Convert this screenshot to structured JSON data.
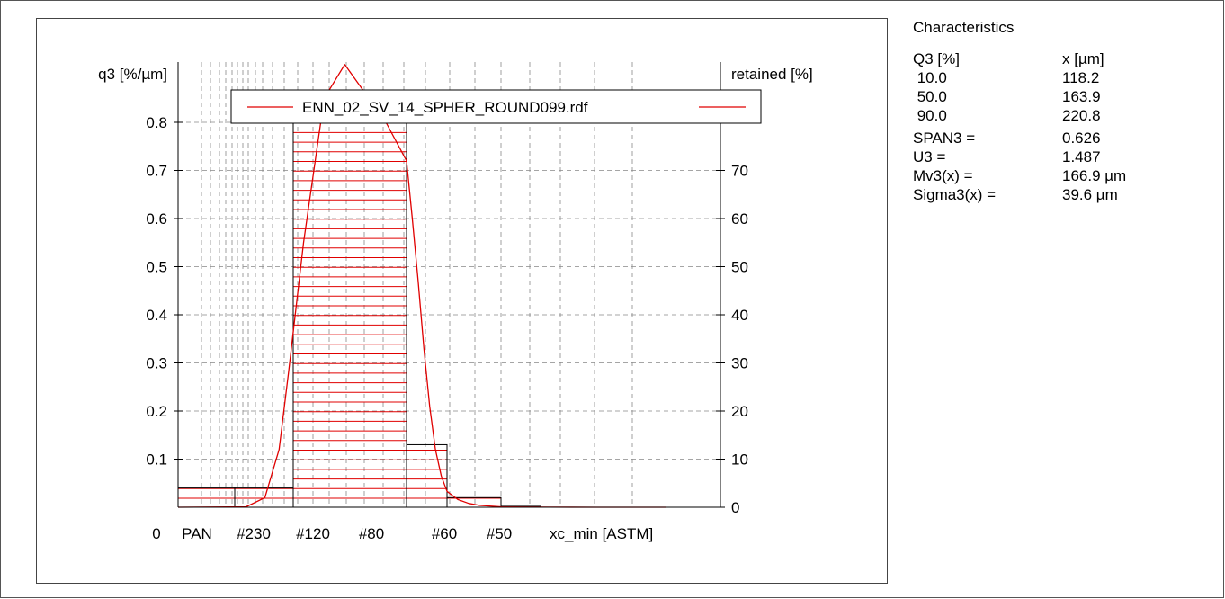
{
  "chart_data": {
    "type": "bar",
    "left_axis_label": "q3 [%/µm]",
    "right_axis_label": "retained [%]",
    "xlabel": "xc_min [ASTM]",
    "legend_entry": "ENN_02_SV_14_SPHER_ROUND099.rdf",
    "legend_position": "top",
    "grid": true,
    "y_left_ticks": [
      "0.1",
      "0.2",
      "0.3",
      "0.4",
      "0.5",
      "0.6",
      "0.7",
      "0.8"
    ],
    "y_right_ticks": [
      "0",
      "10",
      "20",
      "30",
      "40",
      "50",
      "60",
      "70"
    ],
    "x_tick_labels": [
      "0",
      "PAN",
      "#230",
      "#120",
      "#80",
      "#60",
      "#50"
    ],
    "ylim_left": [
      0,
      0.85
    ],
    "ylim_right": [
      0,
      85
    ],
    "x_range_um": [
      0,
      500
    ],
    "categories": [
      "PAN–#230",
      "#230–#120",
      "#120–#80",
      "#80–#60",
      "#60–#50",
      "#50–#40"
    ],
    "retained_percent": [
      4,
      4,
      81,
      13,
      2,
      0.2
    ],
    "bins_um": [
      [
        0,
        63
      ],
      [
        63,
        125
      ],
      [
        125,
        180
      ],
      [
        180,
        250
      ],
      [
        250,
        300
      ],
      [
        300,
        425
      ]
    ],
    "density_curve": {
      "x": [
        0,
        75,
        95,
        110,
        120,
        130,
        140,
        150,
        160,
        170,
        180,
        190,
        200,
        210,
        220,
        230,
        240,
        250,
        260,
        270,
        280,
        300,
        325,
        350,
        400,
        475
      ],
      "q3": [
        0,
        0.001,
        0.02,
        0.12,
        0.28,
        0.55,
        0.85,
        0.92,
        0.86,
        0.8,
        0.72,
        0.6,
        0.47,
        0.33,
        0.21,
        0.12,
        0.065,
        0.033,
        0.016,
        0.008,
        0.004,
        0.001,
        0.0003,
        0.0001,
        2e-05,
        0
      ]
    }
  },
  "stats": {
    "title": "Characteristics",
    "q3_header": "Q3 [%]",
    "x_header": "x [µm]",
    "rows": [
      {
        "q": " 10.0",
        "x": "118.2"
      },
      {
        "q": " 50.0",
        "x": "163.9"
      },
      {
        "q": " 90.0",
        "x": "220.8"
      }
    ],
    "span_label": "SPAN3 =",
    "span_value": "0.626",
    "u_label": "U3 =",
    "u_value": "1.487",
    "mv_label": "Mv3(x) =",
    "mv_value": "166.9 µm",
    "sigma_label": "Sigma3(x) =",
    "sigma_value": "39.6 µm"
  },
  "colors": {
    "curve": "#e00000",
    "hatch": "#e00000",
    "bar_edge": "#000000",
    "grid": "#888888"
  }
}
